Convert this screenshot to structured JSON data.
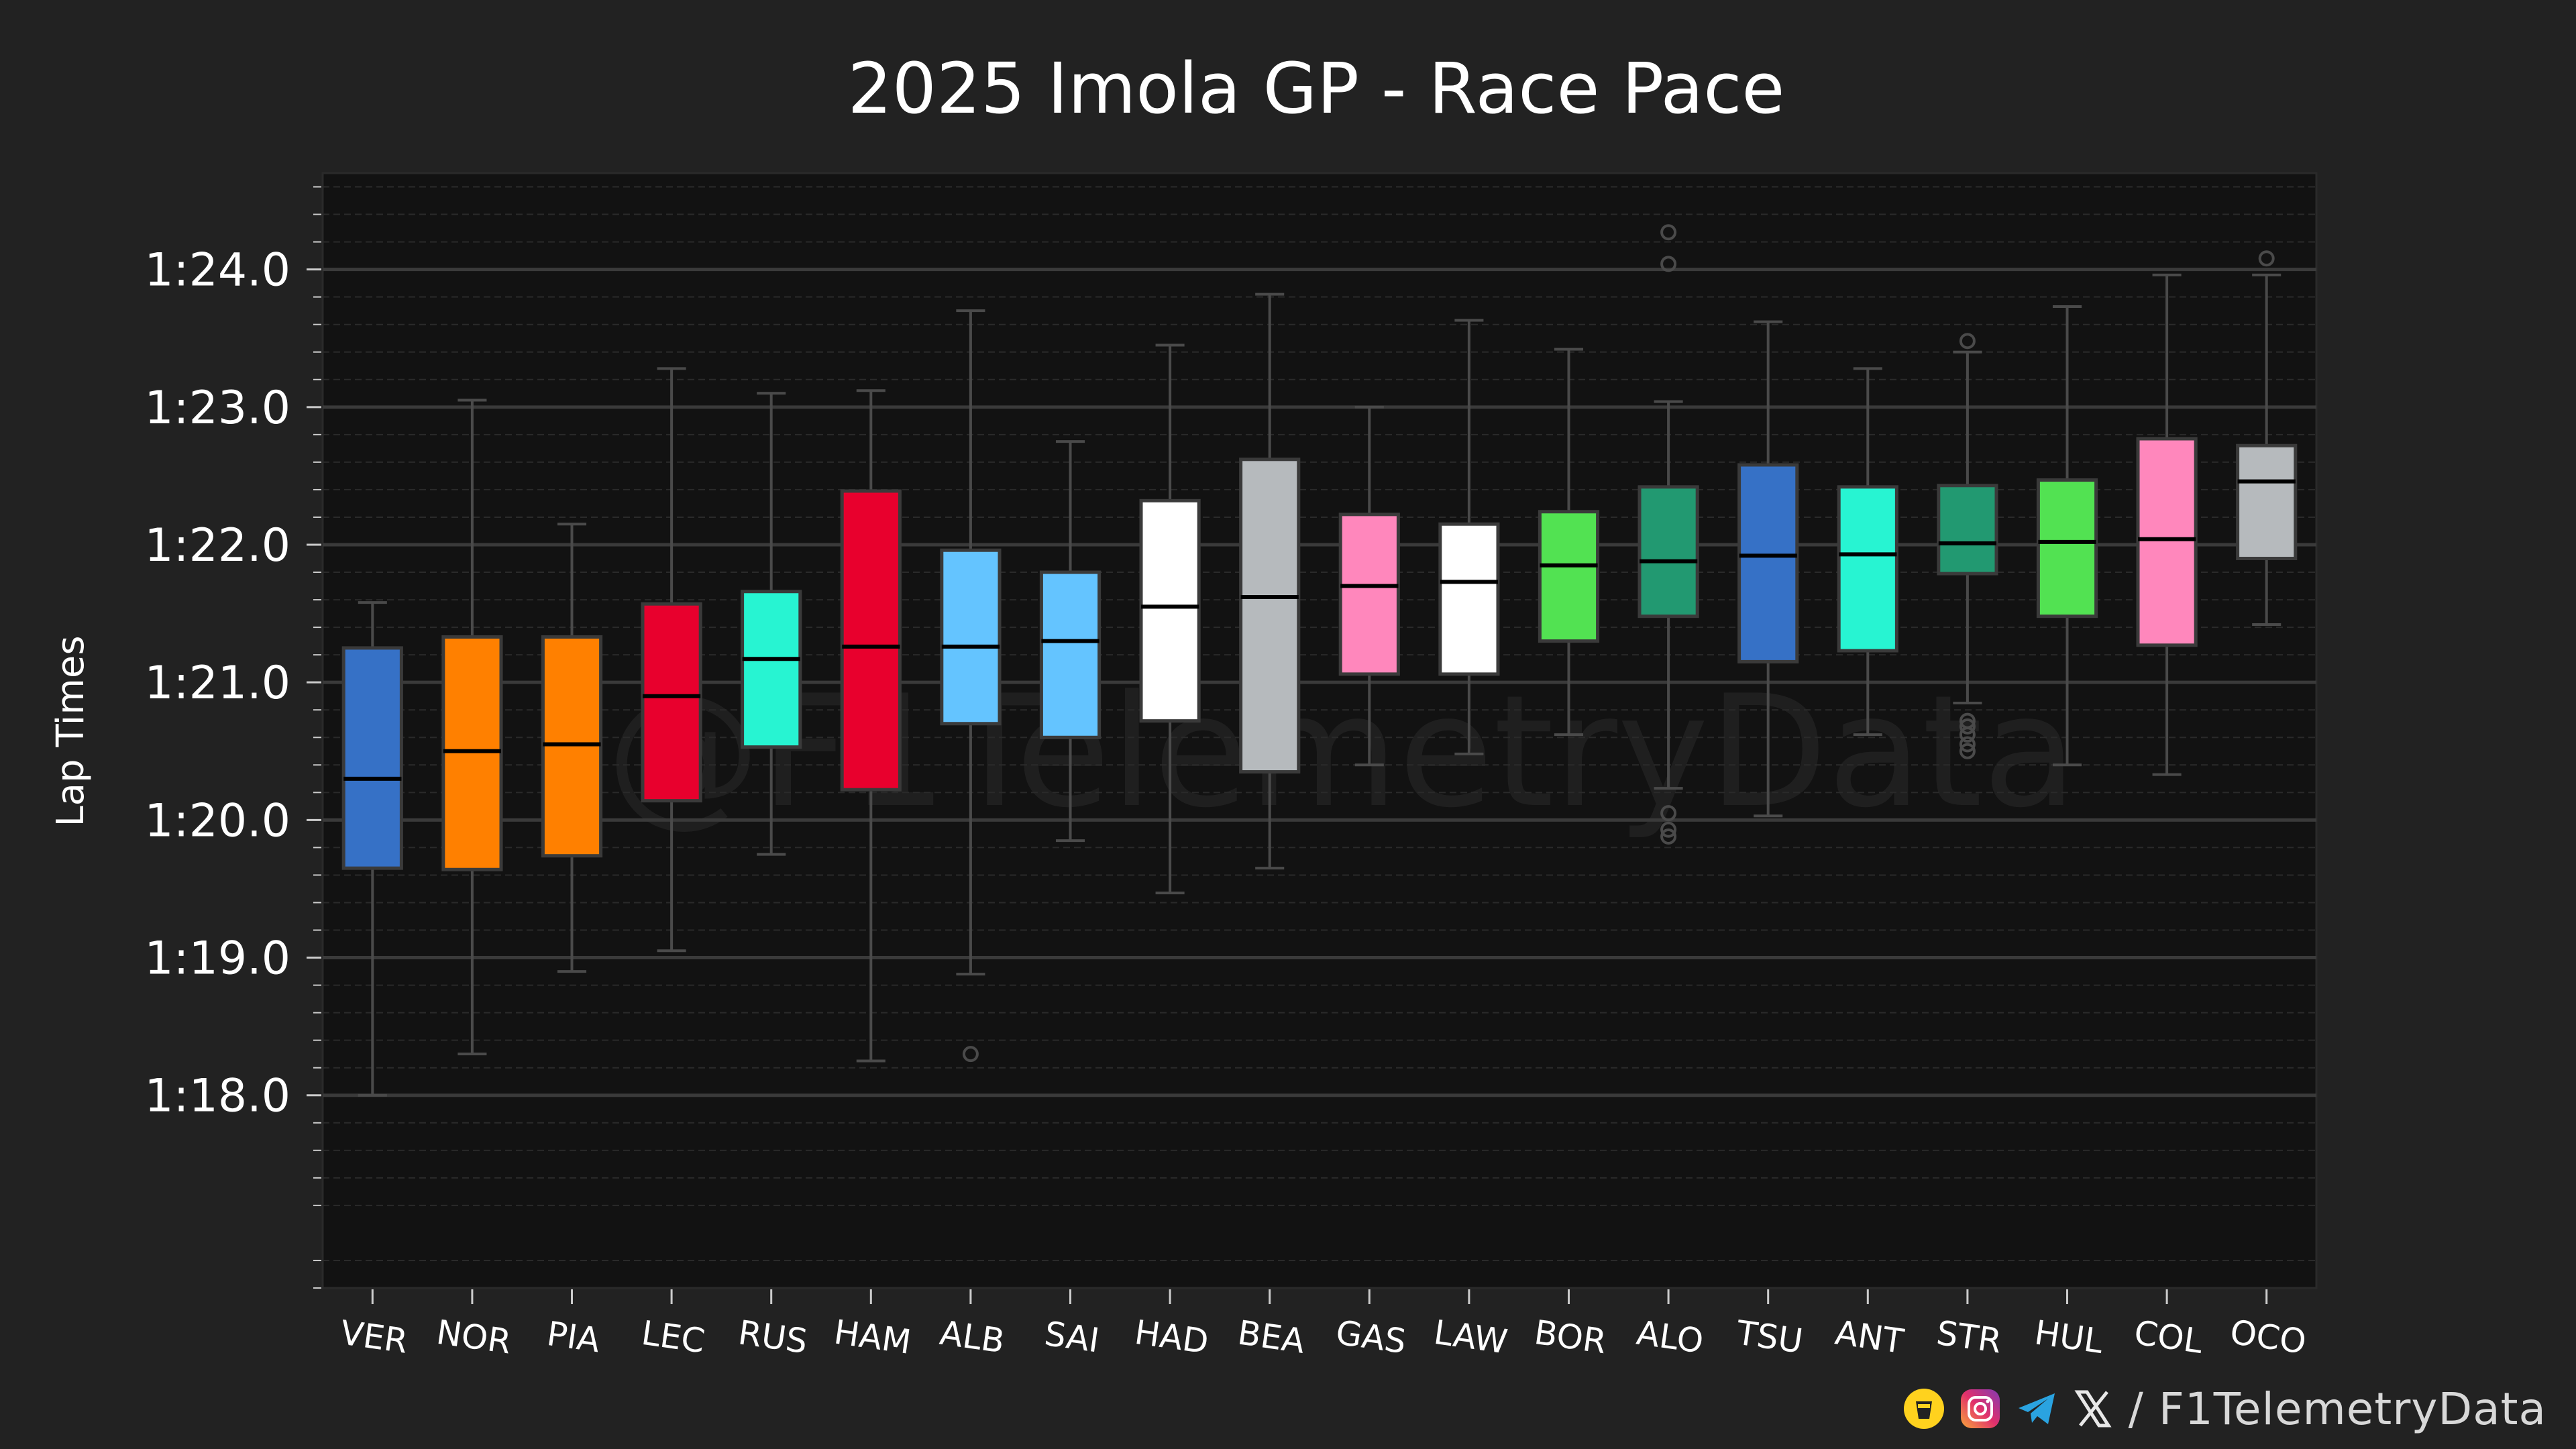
{
  "chart_data": {
    "type": "box",
    "title": "2025 Imola GP - Race Pace",
    "ylabel": "Lap Times",
    "xlabel": "",
    "ylim": [
      76.6,
      84.7
    ],
    "yticks": [
      78,
      79,
      80,
      81,
      82,
      83,
      84
    ],
    "ytick_labels": [
      "1:18.0",
      "1:19.0",
      "1:20.0",
      "1:21.0",
      "1:22.0",
      "1:23.0",
      "1:24.0"
    ],
    "grid": true,
    "watermark": "@F1TelemetryData",
    "drivers": [
      {
        "name": "VER",
        "color": "#3671C6",
        "whisker_low": 78.0,
        "q1": 79.65,
        "median": 80.3,
        "q3": 81.25,
        "whisker_high": 81.58,
        "outliers": []
      },
      {
        "name": "NOR",
        "color": "#FF8000",
        "whisker_low": 78.3,
        "q1": 79.64,
        "median": 80.5,
        "q3": 81.33,
        "whisker_high": 83.05,
        "outliers": []
      },
      {
        "name": "PIA",
        "color": "#FF8000",
        "whisker_low": 78.9,
        "q1": 79.74,
        "median": 80.55,
        "q3": 81.33,
        "whisker_high": 82.15,
        "outliers": []
      },
      {
        "name": "LEC",
        "color": "#E8002D",
        "whisker_low": 79.05,
        "q1": 80.14,
        "median": 80.9,
        "q3": 81.57,
        "whisker_high": 83.28,
        "outliers": []
      },
      {
        "name": "RUS",
        "color": "#27F4D2",
        "whisker_low": 79.75,
        "q1": 80.53,
        "median": 81.17,
        "q3": 81.66,
        "whisker_high": 83.1,
        "outliers": []
      },
      {
        "name": "HAM",
        "color": "#E8002D",
        "whisker_low": 78.25,
        "q1": 80.22,
        "median": 81.26,
        "q3": 82.39,
        "whisker_high": 83.12,
        "outliers": []
      },
      {
        "name": "ALB",
        "color": "#64C4FF",
        "whisker_low": 78.88,
        "q1": 80.7,
        "median": 81.26,
        "q3": 81.96,
        "whisker_high": 83.7,
        "outliers": [
          78.3
        ]
      },
      {
        "name": "SAI",
        "color": "#64C4FF",
        "whisker_low": 79.85,
        "q1": 80.6,
        "median": 81.3,
        "q3": 81.8,
        "whisker_high": 82.75,
        "outliers": []
      },
      {
        "name": "HAD",
        "color": "#FFFFFF",
        "whisker_low": 79.47,
        "q1": 80.72,
        "median": 81.55,
        "q3": 82.32,
        "whisker_high": 83.45,
        "outliers": []
      },
      {
        "name": "BEA",
        "color": "#B6BABD",
        "whisker_low": 79.65,
        "q1": 80.35,
        "median": 81.62,
        "q3": 82.62,
        "whisker_high": 83.82,
        "outliers": []
      },
      {
        "name": "GAS",
        "color": "#FF87BC",
        "whisker_low": 80.4,
        "q1": 81.06,
        "median": 81.7,
        "q3": 82.22,
        "whisker_high": 83.0,
        "outliers": []
      },
      {
        "name": "LAW",
        "color": "#FFFFFF",
        "whisker_low": 80.48,
        "q1": 81.06,
        "median": 81.73,
        "q3": 82.15,
        "whisker_high": 83.63,
        "outliers": []
      },
      {
        "name": "BOR",
        "color": "#52E252",
        "whisker_low": 80.62,
        "q1": 81.3,
        "median": 81.85,
        "q3": 82.24,
        "whisker_high": 83.42,
        "outliers": []
      },
      {
        "name": "ALO",
        "color": "#229971",
        "whisker_low": 80.23,
        "q1": 81.48,
        "median": 81.88,
        "q3": 82.42,
        "whisker_high": 83.04,
        "outliers": [
          79.88,
          79.93,
          80.05,
          84.04,
          84.27
        ]
      },
      {
        "name": "TSU",
        "color": "#3671C6",
        "whisker_low": 80.03,
        "q1": 81.15,
        "median": 81.92,
        "q3": 82.58,
        "whisker_high": 83.62,
        "outliers": []
      },
      {
        "name": "ANT",
        "color": "#27F4D2",
        "whisker_low": 80.62,
        "q1": 81.23,
        "median": 81.93,
        "q3": 82.42,
        "whisker_high": 83.28,
        "outliers": []
      },
      {
        "name": "STR",
        "color": "#229971",
        "whisker_low": 80.85,
        "q1": 81.79,
        "median": 82.01,
        "q3": 82.43,
        "whisker_high": 83.4,
        "outliers": [
          80.5,
          80.55,
          80.62,
          80.68,
          80.72,
          83.48
        ]
      },
      {
        "name": "HUL",
        "color": "#52E252",
        "whisker_low": 80.4,
        "q1": 81.48,
        "median": 82.02,
        "q3": 82.47,
        "whisker_high": 83.73,
        "outliers": []
      },
      {
        "name": "COL",
        "color": "#FF87BC",
        "whisker_low": 80.33,
        "q1": 81.27,
        "median": 82.04,
        "q3": 82.77,
        "whisker_high": 83.96,
        "outliers": []
      },
      {
        "name": "OCO",
        "color": "#B6BABD",
        "whisker_low": 81.42,
        "q1": 81.9,
        "median": 82.46,
        "q3": 82.72,
        "whisker_high": 83.96,
        "outliers": [
          84.08
        ]
      }
    ]
  },
  "colors": {
    "background": "#222222",
    "plot_background": "#121212",
    "grid_major": "#3a3a3a",
    "grid_minor": "#2a2a2a",
    "text": "#ffffff",
    "whisker": "#4a4a4a"
  },
  "footer": {
    "icons": [
      "kofi-cup-icon",
      "instagram-icon",
      "telegram-icon",
      "x-icon"
    ],
    "handle": "/ F1TelemetryData"
  }
}
